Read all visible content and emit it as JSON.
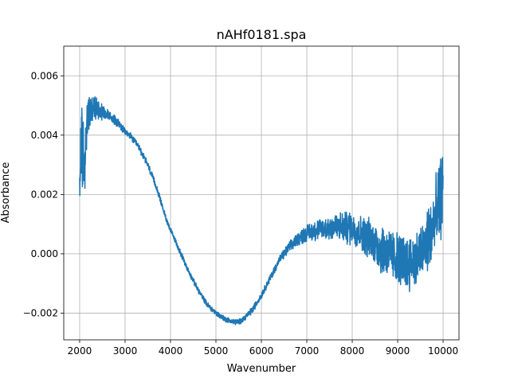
{
  "chart_data": {
    "type": "line",
    "title": "nAHf0181.spa",
    "xlabel": "Wavenumber",
    "ylabel": "Absorbance",
    "xlim": [
      1650,
      10350
    ],
    "ylim": [
      -0.0029,
      0.007
    ],
    "xticks": [
      2000,
      3000,
      4000,
      5000,
      6000,
      7000,
      8000,
      9000,
      10000
    ],
    "xtick_labels": [
      "2000",
      "3000",
      "4000",
      "5000",
      "6000",
      "7000",
      "8000",
      "9000",
      "10000"
    ],
    "yticks": [
      -0.002,
      0.0,
      0.002,
      0.004,
      0.006
    ],
    "ytick_labels": [
      "−0.002",
      "0.000",
      "0.002",
      "0.004",
      "0.006"
    ],
    "grid": true,
    "line_color": "#1f77b4",
    "series": [
      {
        "x": [
          2000,
          2020,
          2040,
          2060,
          2080,
          2100,
          2150,
          2200,
          2250,
          2300,
          2400,
          2500,
          2600,
          2700,
          2800,
          2900,
          3000,
          3100,
          3200,
          3300,
          3400,
          3500,
          3600,
          3700,
          3800,
          3900,
          4000,
          4200,
          4400,
          4600,
          4800,
          5000,
          5200,
          5400,
          5500,
          5600,
          5800,
          6000,
          6200,
          6400,
          6600,
          6800,
          7000,
          7200,
          7400,
          7600,
          7800,
          8000,
          8200,
          8400,
          8600,
          8800,
          9000,
          9200,
          9400,
          9600,
          9700,
          9800,
          9900,
          10000
        ],
        "y": [
          0.0015,
          0.0035,
          0.0045,
          0.0025,
          0.004,
          0.0028,
          0.0042,
          0.0047,
          0.0048,
          0.0049,
          0.0049,
          0.0048,
          0.0047,
          0.0046,
          0.0045,
          0.0043,
          0.0041,
          0.004,
          0.0038,
          0.0036,
          0.0033,
          0.003,
          0.0026,
          0.0022,
          0.0017,
          0.0012,
          0.0008,
          0.0001,
          -0.0006,
          -0.0012,
          -0.0017,
          -0.002,
          -0.0022,
          -0.0023,
          -0.0023,
          -0.0022,
          -0.0019,
          -0.0014,
          -0.0008,
          -0.0002,
          0.0002,
          0.0005,
          0.0007,
          0.0008,
          0.00085,
          0.0009,
          0.0009,
          0.00085,
          0.0007,
          0.0005,
          0.0002,
          0.0,
          -0.0002,
          -0.0003,
          -0.0002,
          0.0002,
          0.0006,
          0.001,
          0.0016,
          0.0022
        ],
        "noise": [
          0.0012,
          0.0014,
          0.0014,
          0.0012,
          0.0011,
          0.0009,
          0.0007,
          0.0006,
          0.0005,
          0.0004,
          0.0003,
          0.00025,
          0.0002,
          0.00015,
          0.00015,
          0.00012,
          0.0001,
          0.0001,
          0.0001,
          0.0001,
          0.0001,
          0.0001,
          0.0001,
          0.0001,
          8e-05,
          8e-05,
          8e-05,
          8e-05,
          8e-05,
          8e-05,
          8e-05,
          8e-05,
          8e-05,
          8e-05,
          8e-05,
          8e-05,
          0.0001,
          0.0001,
          0.0001,
          0.00012,
          0.00015,
          0.0002,
          0.00025,
          0.0003,
          0.00035,
          0.0004,
          0.00045,
          0.0005,
          0.0005,
          0.0006,
          0.0007,
          0.0008,
          0.0008,
          0.0008,
          0.0008,
          0.0009,
          0.001,
          0.0011,
          0.0012,
          0.0012
        ]
      }
    ]
  }
}
